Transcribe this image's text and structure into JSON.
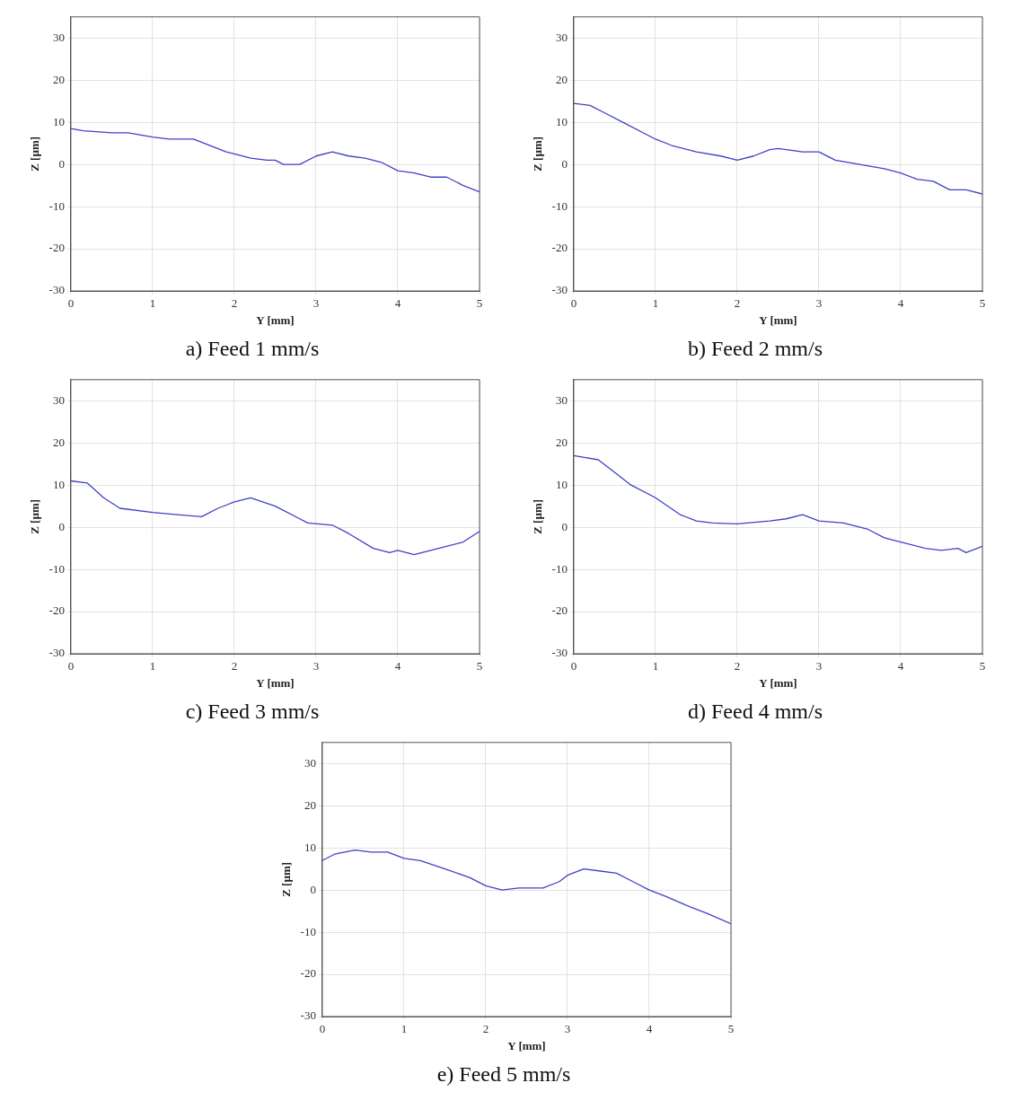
{
  "chart_data": [
    {
      "type": "line",
      "title": "a) Feed 1 mm/s",
      "xlabel": "Y [mm]",
      "ylabel": "Z [µm]",
      "xlim": [
        0,
        5
      ],
      "ylim": [
        -30,
        35
      ],
      "xticks": [
        0,
        1,
        2,
        3,
        4,
        5
      ],
      "yticks": [
        -30,
        -20,
        -10,
        0,
        10,
        20,
        30
      ],
      "grid": true,
      "marker": "none",
      "legend": false,
      "x": [
        0,
        0.15,
        0.5,
        0.7,
        1,
        1.2,
        1.5,
        1.9,
        2,
        2.2,
        2.4,
        2.5,
        2.6,
        2.8,
        3,
        3.2,
        3.4,
        3.6,
        3.8,
        4,
        4.2,
        4.4,
        4.6,
        4.8,
        5
      ],
      "series": [
        {
          "color": "#4040c8",
          "values": [
            8.5,
            8,
            7.5,
            7.5,
            6.5,
            6,
            6,
            3,
            2.5,
            1.5,
            1,
            1,
            0,
            0,
            2,
            3,
            2,
            1.5,
            0.5,
            -1.5,
            -2,
            -3,
            -3,
            -5,
            -6.5
          ]
        }
      ]
    },
    {
      "type": "line",
      "title": "b) Feed 2 mm/s",
      "xlabel": "Y [mm]",
      "ylabel": "Z [µm]",
      "xlim": [
        0,
        5
      ],
      "ylim": [
        -30,
        35
      ],
      "xticks": [
        0,
        1,
        2,
        3,
        4,
        5
      ],
      "yticks": [
        -30,
        -20,
        -10,
        0,
        10,
        20,
        30
      ],
      "grid": true,
      "marker": "none",
      "legend": false,
      "x": [
        0,
        0.2,
        0.4,
        0.6,
        1,
        1.2,
        1.5,
        1.8,
        2,
        2.2,
        2.4,
        2.5,
        2.8,
        3,
        3.2,
        3.5,
        3.8,
        4,
        4.2,
        4.4,
        4.6,
        4.8,
        5
      ],
      "series": [
        {
          "color": "#4040c8",
          "values": [
            14.5,
            14,
            12,
            10,
            6,
            4.5,
            3,
            2,
            1,
            2,
            3.5,
            3.8,
            3,
            3,
            1,
            0,
            -1,
            -2,
            -3.5,
            -4,
            -6,
            -6,
            -7
          ]
        }
      ]
    },
    {
      "type": "line",
      "title": "c) Feed 3 mm/s",
      "xlabel": "Y [mm]",
      "ylabel": "Z [µm]",
      "xlim": [
        0,
        5
      ],
      "ylim": [
        -30,
        35
      ],
      "xticks": [
        0,
        1,
        2,
        3,
        4,
        5
      ],
      "yticks": [
        -30,
        -20,
        -10,
        0,
        10,
        20,
        30
      ],
      "grid": true,
      "marker": "none",
      "legend": false,
      "x": [
        0,
        0.2,
        0.4,
        0.6,
        1,
        1.3,
        1.6,
        1.8,
        2,
        2.2,
        2.5,
        2.8,
        2.9,
        3.2,
        3.4,
        3.7,
        3.9,
        4,
        4.2,
        4.5,
        4.8,
        5
      ],
      "series": [
        {
          "color": "#4040c8",
          "values": [
            11,
            10.5,
            7,
            4.5,
            3.5,
            3,
            2.5,
            4.5,
            6,
            7,
            5,
            2,
            1,
            0.5,
            -1.5,
            -5,
            -6,
            -5.5,
            -6.5,
            -5,
            -3.5,
            -1
          ]
        }
      ]
    },
    {
      "type": "line",
      "title": "d) Feed 4 mm/s",
      "xlabel": "Y [mm]",
      "ylabel": "Z [µm]",
      "xlim": [
        0,
        5
      ],
      "ylim": [
        -30,
        35
      ],
      "xticks": [
        0,
        1,
        2,
        3,
        4,
        5
      ],
      "yticks": [
        -30,
        -20,
        -10,
        0,
        10,
        20,
        30
      ],
      "grid": true,
      "marker": "none",
      "legend": false,
      "x": [
        0,
        0.3,
        0.5,
        0.7,
        1,
        1.3,
        1.5,
        1.7,
        2,
        2.4,
        2.6,
        2.8,
        3,
        3.3,
        3.6,
        3.8,
        4,
        4.3,
        4.5,
        4.7,
        4.8,
        5
      ],
      "series": [
        {
          "color": "#4040c8",
          "values": [
            17,
            16,
            13,
            10,
            7,
            3,
            1.5,
            1,
            0.8,
            1.5,
            2,
            3,
            1.5,
            1,
            -0.5,
            -2.5,
            -3.5,
            -5,
            -5.5,
            -5,
            -6,
            -4.5
          ]
        }
      ]
    },
    {
      "type": "line",
      "title": "e) Feed 5 mm/s",
      "xlabel": "Y [mm]",
      "ylabel": "Z [µm]",
      "xlim": [
        0,
        5
      ],
      "ylim": [
        -30,
        35
      ],
      "xticks": [
        0,
        1,
        2,
        3,
        4,
        5
      ],
      "yticks": [
        -30,
        -20,
        -10,
        0,
        10,
        20,
        30
      ],
      "grid": true,
      "marker": "none",
      "legend": false,
      "x": [
        0,
        0.15,
        0.4,
        0.6,
        0.8,
        1,
        1.2,
        1.5,
        1.8,
        2,
        2.2,
        2.4,
        2.7,
        2.9,
        3,
        3.2,
        3.4,
        3.6,
        3.8,
        4,
        4.2,
        4.5,
        4.7,
        5
      ],
      "series": [
        {
          "color": "#4040c8",
          "values": [
            7,
            8.5,
            9.5,
            9,
            9,
            7.5,
            7,
            5,
            3,
            1,
            0,
            0.5,
            0.5,
            2,
            3.5,
            5,
            4.5,
            4,
            2,
            0,
            -1.5,
            -4,
            -5.5,
            -8
          ]
        }
      ]
    }
  ]
}
